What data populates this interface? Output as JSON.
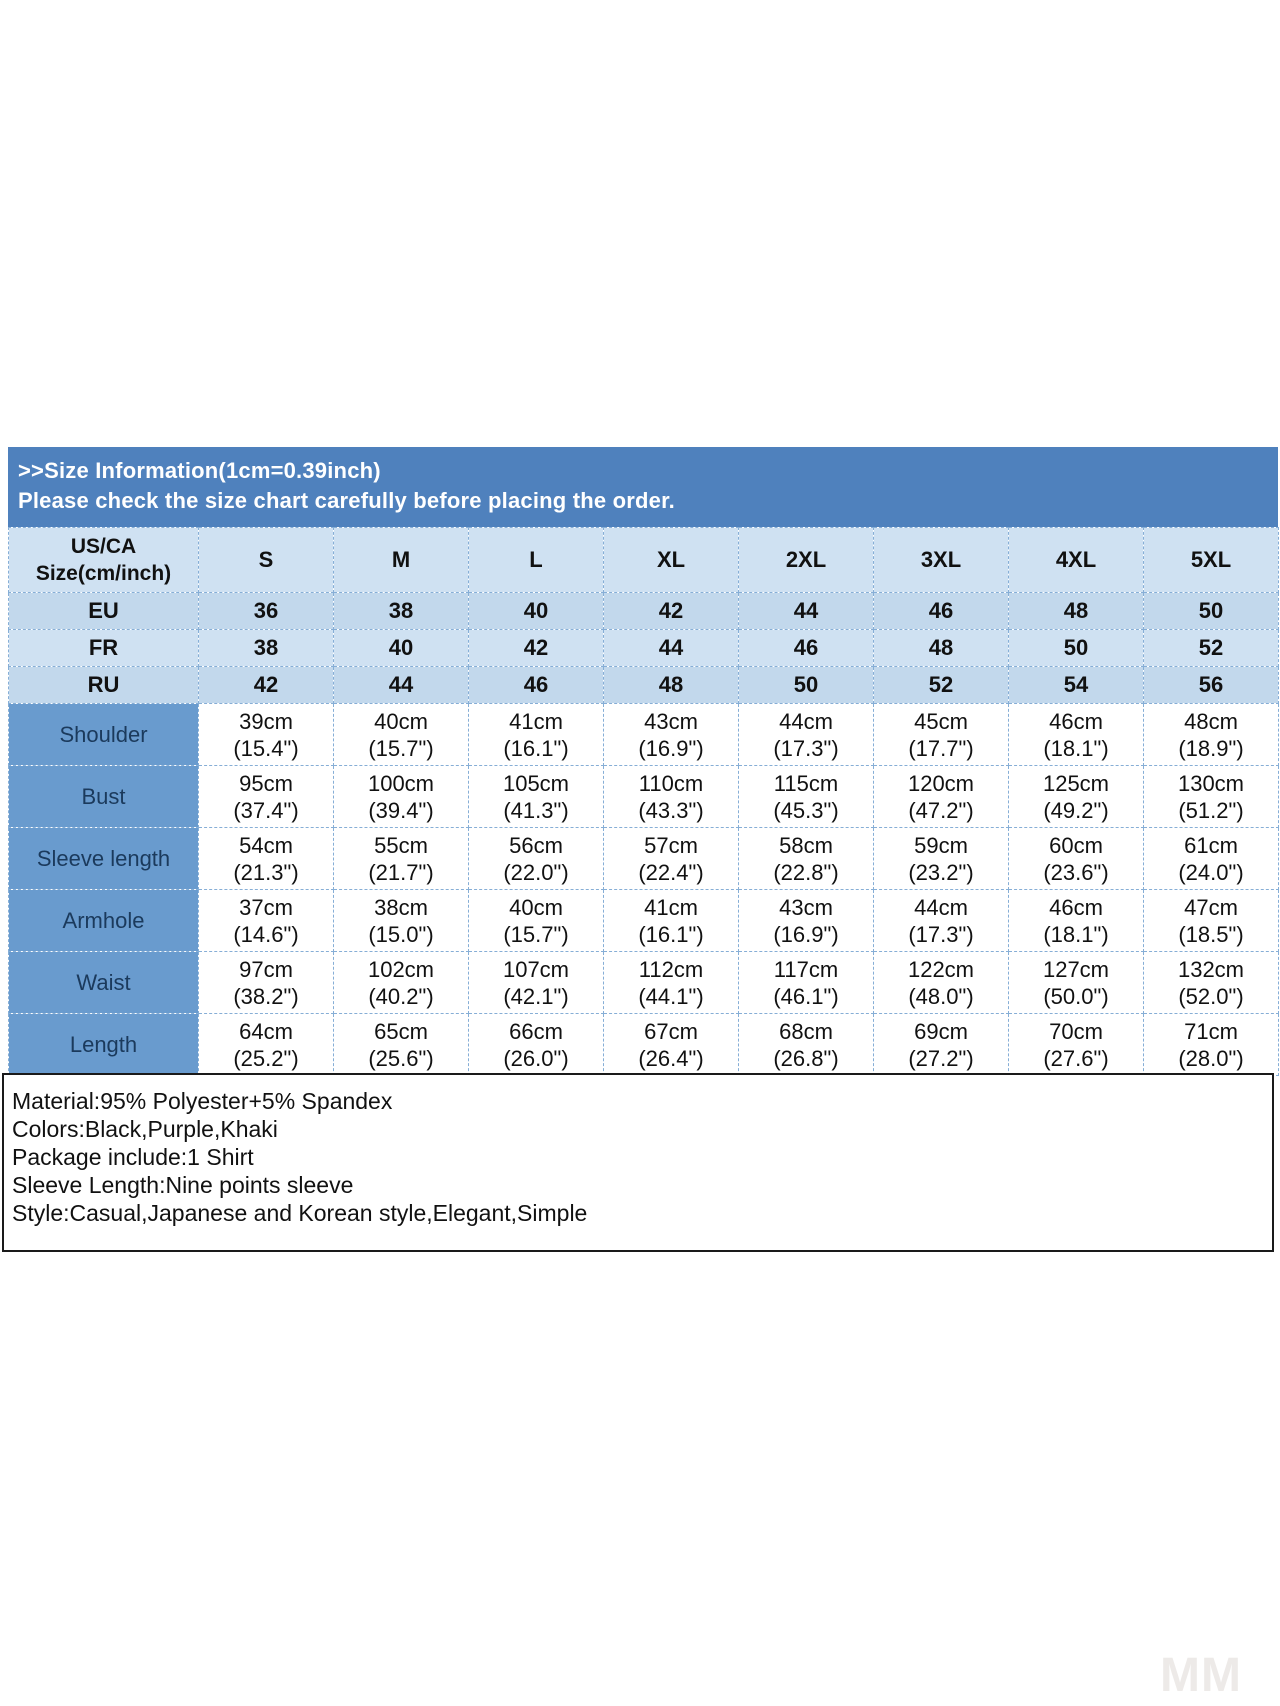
{
  "title": {
    "line1": ">>Size Information(1cm=0.39inch)",
    "line2": "Please check the size chart carefully before placing the order."
  },
  "table": {
    "corner_label_line1": "US/CA",
    "corner_label_line2": "Size(cm/inch)",
    "sizes": [
      "S",
      "M",
      "L",
      "XL",
      "2XL",
      "3XL",
      "4XL",
      "5XL"
    ],
    "size_systems": [
      {
        "label": "EU",
        "values": [
          "36",
          "38",
          "40",
          "42",
          "44",
          "46",
          "48",
          "50"
        ]
      },
      {
        "label": "FR",
        "values": [
          "38",
          "40",
          "42",
          "44",
          "46",
          "48",
          "50",
          "52"
        ]
      },
      {
        "label": "RU",
        "values": [
          "42",
          "44",
          "46",
          "48",
          "50",
          "52",
          "54",
          "56"
        ]
      }
    ],
    "measurements": [
      {
        "label": "Shoulder",
        "cells": [
          [
            "39cm",
            "(15.4\")"
          ],
          [
            "40cm",
            "(15.7\")"
          ],
          [
            "41cm",
            "(16.1\")"
          ],
          [
            "43cm",
            "(16.9\")"
          ],
          [
            "44cm",
            "(17.3\")"
          ],
          [
            "45cm",
            "(17.7\")"
          ],
          [
            "46cm",
            "(18.1\")"
          ],
          [
            "48cm",
            "(18.9\")"
          ]
        ]
      },
      {
        "label": "Bust",
        "cells": [
          [
            "95cm",
            "(37.4\")"
          ],
          [
            "100cm",
            "(39.4\")"
          ],
          [
            "105cm",
            "(41.3\")"
          ],
          [
            "110cm",
            "(43.3\")"
          ],
          [
            "115cm",
            "(45.3\")"
          ],
          [
            "120cm",
            "(47.2\")"
          ],
          [
            "125cm",
            "(49.2\")"
          ],
          [
            "130cm",
            "(51.2\")"
          ]
        ]
      },
      {
        "label": "Sleeve length",
        "cells": [
          [
            "54cm",
            "(21.3\")"
          ],
          [
            "55cm",
            "(21.7\")"
          ],
          [
            "56cm",
            "(22.0\")"
          ],
          [
            "57cm",
            "(22.4\")"
          ],
          [
            "58cm",
            "(22.8\")"
          ],
          [
            "59cm",
            "(23.2\")"
          ],
          [
            "60cm",
            "(23.6\")"
          ],
          [
            "61cm",
            "(24.0\")"
          ]
        ]
      },
      {
        "label": "Armhole",
        "cells": [
          [
            "37cm",
            "(14.6\")"
          ],
          [
            "38cm",
            "(15.0\")"
          ],
          [
            "40cm",
            "(15.7\")"
          ],
          [
            "41cm",
            "(16.1\")"
          ],
          [
            "43cm",
            "(16.9\")"
          ],
          [
            "44cm",
            "(17.3\")"
          ],
          [
            "46cm",
            "(18.1\")"
          ],
          [
            "47cm",
            "(18.5\")"
          ]
        ]
      },
      {
        "label": "Waist",
        "cells": [
          [
            "97cm",
            "(38.2\")"
          ],
          [
            "102cm",
            "(40.2\")"
          ],
          [
            "107cm",
            "(42.1\")"
          ],
          [
            "112cm",
            "(44.1\")"
          ],
          [
            "117cm",
            "(46.1\")"
          ],
          [
            "122cm",
            "(48.0\")"
          ],
          [
            "127cm",
            "(50.0\")"
          ],
          [
            "132cm",
            "(52.0\")"
          ]
        ]
      },
      {
        "label": "Length",
        "cells": [
          [
            "64cm",
            "(25.2\")"
          ],
          [
            "65cm",
            "(25.6\")"
          ],
          [
            "66cm",
            "(26.0\")"
          ],
          [
            "67cm",
            "(26.4\")"
          ],
          [
            "68cm",
            "(26.8\")"
          ],
          [
            "69cm",
            "(27.2\")"
          ],
          [
            "70cm",
            "(27.6\")"
          ],
          [
            "71cm",
            "(28.0\")"
          ]
        ]
      }
    ]
  },
  "notes": [
    "Material:95% Polyester+5% Spandex",
    "Colors:Black,Purple,Khaki",
    "Package include:1 Shirt",
    "Sleeve Length:Nine points sleeve",
    "Style:Casual,Japanese and Korean style,Elegant,Simple"
  ],
  "watermark": "MM",
  "colors": {
    "title_bar": "#4f81bd",
    "header_row": "#cfe1f2",
    "system_row_alt": "#c2d8ec",
    "measure_label_cell": "#699bce",
    "grid_line": "#86aed6",
    "notes_border": "#1a1a1a",
    "watermark": "#edeae8"
  }
}
